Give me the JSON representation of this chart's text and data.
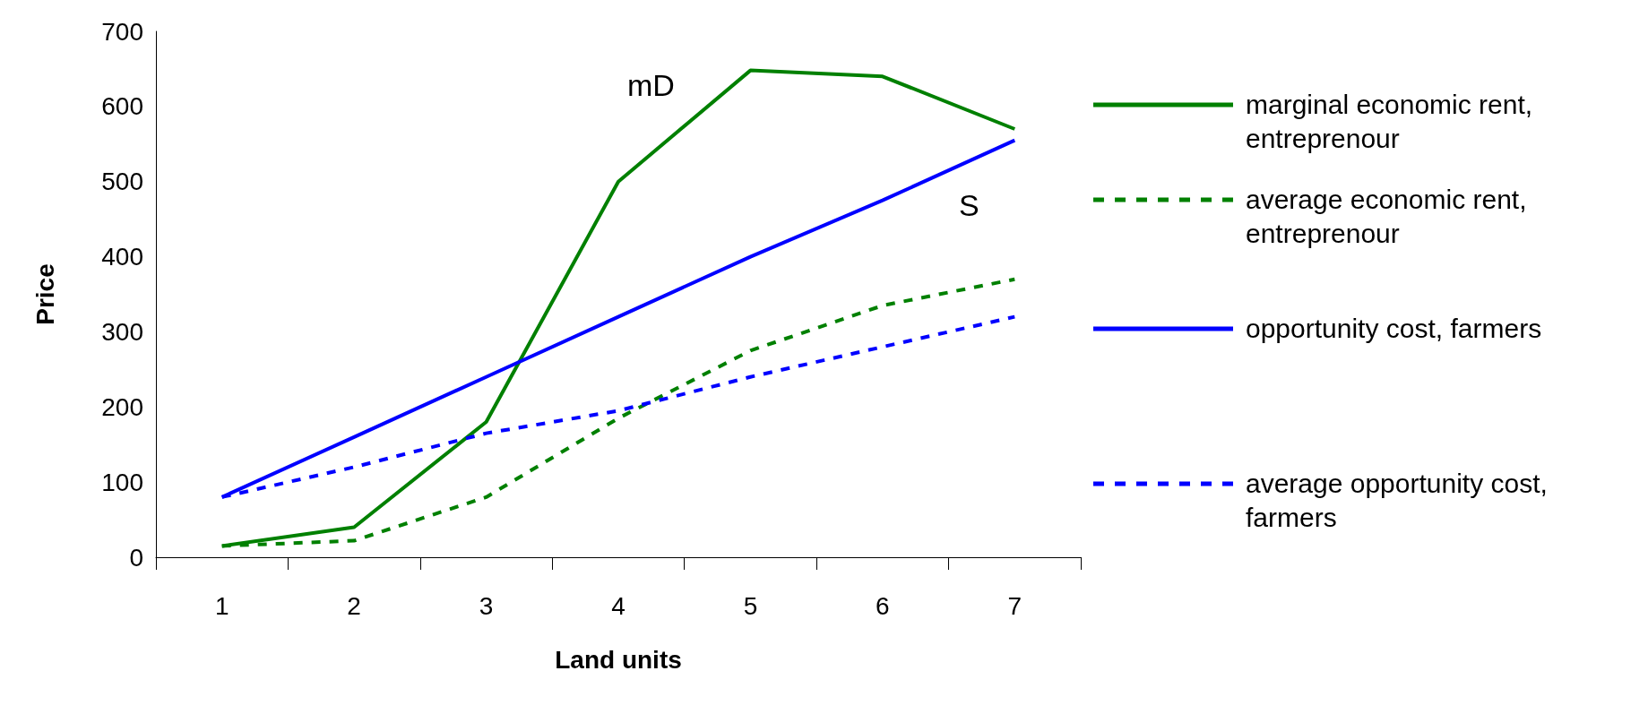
{
  "chart_data": {
    "type": "line",
    "xlabel": "Land units",
    "ylabel": "Price",
    "categories": [
      "1",
      "2",
      "3",
      "4",
      "5",
      "6",
      "7"
    ],
    "series": [
      {
        "name": "marginal economic rent, entreprenour",
        "color": "#008000",
        "line_style": "solid",
        "values": [
          15,
          40,
          180,
          500,
          648,
          640,
          570
        ]
      },
      {
        "name": "average economic rent, entreprenour",
        "color": "#008000",
        "line_style": "dashed",
        "values": [
          15,
          22,
          80,
          185,
          275,
          335,
          370
        ]
      },
      {
        "name": "opportunity cost, farmers",
        "color": "#0000ff",
        "line_style": "solid",
        "values": [
          80,
          160,
          240,
          320,
          400,
          475,
          555
        ]
      },
      {
        "name": "average opportunity cost, farmers",
        "color": "#0000ff",
        "line_style": "dashed",
        "values": [
          80,
          120,
          165,
          195,
          240,
          280,
          320
        ]
      }
    ],
    "annotations": [
      "mD",
      "S"
    ],
    "ylim": [
      0,
      700
    ],
    "yticks": [
      0,
      100,
      200,
      300,
      400,
      500,
      600,
      700
    ],
    "grid": false,
    "legend": "right",
    "marker": "none"
  }
}
